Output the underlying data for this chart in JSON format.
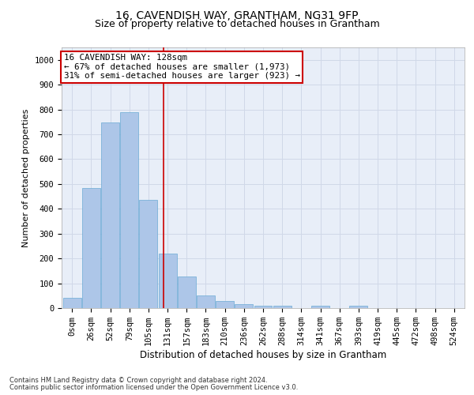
{
  "title": "16, CAVENDISH WAY, GRANTHAM, NG31 9FP",
  "subtitle": "Size of property relative to detached houses in Grantham",
  "xlabel": "Distribution of detached houses by size in Grantham",
  "ylabel": "Number of detached properties",
  "bar_labels": [
    "0sqm",
    "26sqm",
    "52sqm",
    "79sqm",
    "105sqm",
    "131sqm",
    "157sqm",
    "183sqm",
    "210sqm",
    "236sqm",
    "262sqm",
    "288sqm",
    "314sqm",
    "341sqm",
    "367sqm",
    "393sqm",
    "419sqm",
    "445sqm",
    "472sqm",
    "498sqm",
    "524sqm"
  ],
  "bar_values": [
    42,
    485,
    748,
    790,
    435,
    220,
    128,
    50,
    28,
    15,
    10,
    10,
    0,
    8,
    0,
    8,
    0,
    0,
    0,
    0,
    0
  ],
  "bar_color": "#adc6e8",
  "bar_edge_color": "#6aaad4",
  "property_line_x": 4.77,
  "property_line_color": "#cc0000",
  "annotation_line1": "16 CAVENDISH WAY: 128sqm",
  "annotation_line2": "← 67% of detached houses are smaller (1,973)",
  "annotation_line3": "31% of semi-detached houses are larger (923) →",
  "annotation_box_color": "#cc0000",
  "ylim": [
    0,
    1050
  ],
  "yticks": [
    0,
    100,
    200,
    300,
    400,
    500,
    600,
    700,
    800,
    900,
    1000
  ],
  "grid_color": "#d0d8e8",
  "bg_color": "#e8eef8",
  "footer_line1": "Contains HM Land Registry data © Crown copyright and database right 2024.",
  "footer_line2": "Contains public sector information licensed under the Open Government Licence v3.0.",
  "title_fontsize": 10,
  "subtitle_fontsize": 9,
  "axis_label_fontsize": 8,
  "tick_fontsize": 7.5,
  "annotation_fontsize": 7.8,
  "footer_fontsize": 6
}
